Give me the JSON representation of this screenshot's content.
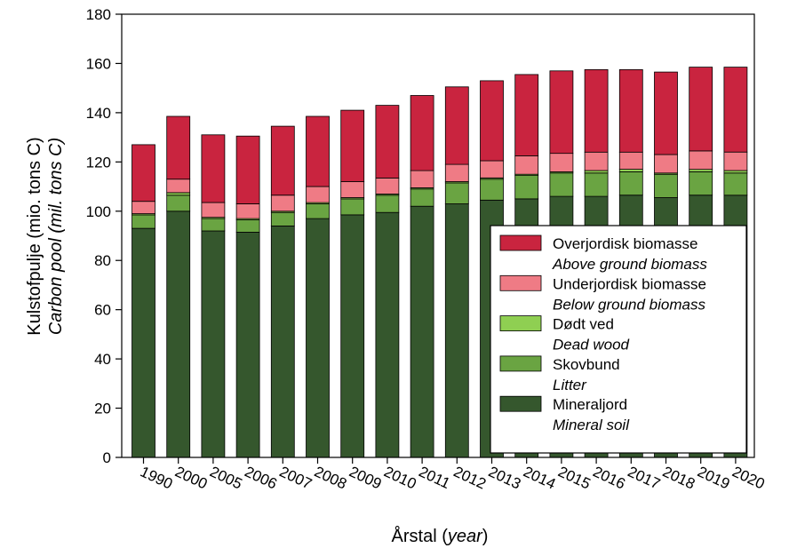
{
  "chart_data": {
    "type": "bar",
    "stacked": true,
    "categories": [
      "1990",
      "2000",
      "2005",
      "2006",
      "2007",
      "2008",
      "2009",
      "2010",
      "2011",
      "2012",
      "2013",
      "2014",
      "2015",
      "2016",
      "2017",
      "2018",
      "2019",
      "2020"
    ],
    "series": [
      {
        "name": "Mineraljord",
        "name_en": "Mineral soil",
        "color": "#35572d",
        "values": [
          93,
          100,
          92,
          91.5,
          94,
          97,
          98.5,
          99.5,
          102,
          103,
          104.5,
          105,
          106,
          106,
          106.5,
          105.5,
          106.5,
          106.5
        ]
      },
      {
        "name": "Skovbund",
        "name_en": "Litter",
        "color": "#6aa442",
        "values": [
          5.5,
          6.5,
          5,
          5,
          5.5,
          6,
          6.5,
          7,
          7,
          8.5,
          8.5,
          9.5,
          9.5,
          9.5,
          9.5,
          9.5,
          9.5,
          9
        ]
      },
      {
        "name": "Dødt ved",
        "name_en": "Dead wood",
        "color": "#8fcf52",
        "values": [
          0.5,
          1,
          0.5,
          0.5,
          0.5,
          0.5,
          0.5,
          0.5,
          0.5,
          0.5,
          0.5,
          0.5,
          0.5,
          1,
          1,
          0.5,
          1,
          1
        ]
      },
      {
        "name": "Underjordisk biomasse",
        "name_en": "Below ground biomass",
        "color": "#ef7b85",
        "values": [
          5,
          5.5,
          6,
          6,
          6.5,
          6.5,
          6.5,
          6.5,
          7,
          7,
          7,
          7.5,
          7.5,
          7.5,
          7,
          7.5,
          7.5,
          7.5
        ]
      },
      {
        "name": "Overjordisk biomasse",
        "name_en": "Above ground biomass",
        "color": "#c9243f",
        "values": [
          23,
          25.5,
          27.5,
          27.5,
          28,
          28.5,
          29,
          29.5,
          30.5,
          31.5,
          32.5,
          33,
          33.5,
          33.5,
          33.5,
          33.5,
          34,
          34.5
        ]
      }
    ],
    "ylabel": "Kulstofpulje (mio. tons C)",
    "ylabel_en": "Carbon pool (mil. tons C)",
    "xlabel": "Årstal",
    "xlabel_en": "year",
    "ylim": [
      0,
      180
    ],
    "yticks": [
      0,
      20,
      40,
      60,
      80,
      100,
      120,
      140,
      160,
      180
    ],
    "grid": false,
    "legend_position": "bottom-right",
    "legend_order": [
      4,
      3,
      2,
      1,
      0
    ]
  }
}
